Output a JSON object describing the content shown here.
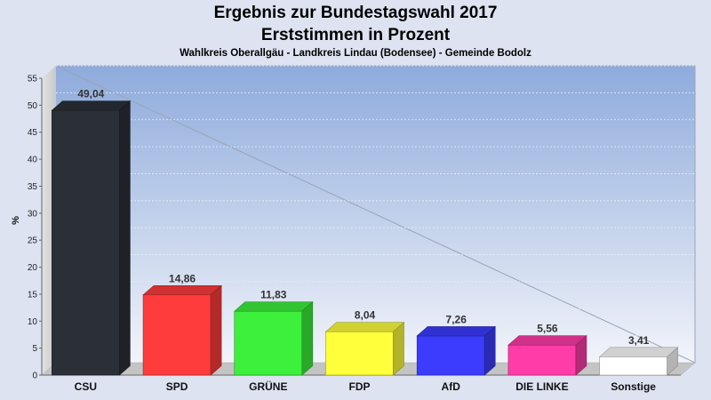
{
  "chart_data": {
    "type": "bar",
    "title": "Ergebnis zur Bundestagswahl 2017",
    "subtitle": "Erststimmen in Prozent",
    "caption": "Wahlkreis Oberallgäu - Landkreis Lindau (Bodensee) - Gemeinde Bodolz",
    "ylabel": "%",
    "xlabel": "",
    "ylim": [
      0,
      55
    ],
    "yticks": [
      "0",
      "5",
      "10",
      "15",
      "20",
      "25",
      "30",
      "35",
      "40",
      "45",
      "50",
      "55"
    ],
    "categories": [
      "CSU",
      "SPD",
      "GRÜNE",
      "FDP",
      "AfD",
      "DIE LINKE",
      "Sonstige"
    ],
    "values": [
      49.04,
      14.86,
      11.83,
      8.04,
      7.26,
      5.56,
      3.41
    ],
    "value_labels": [
      "49,04",
      "14,86",
      "11,83",
      "8,04",
      "7,26",
      "5,56",
      "3,41"
    ],
    "colors": [
      "#2b2f38",
      "#ff3c3c",
      "#3cf03c",
      "#ffff3c",
      "#3c3cff",
      "#ff3ca8",
      "#ffffff"
    ],
    "grid": true,
    "legend": "none"
  }
}
